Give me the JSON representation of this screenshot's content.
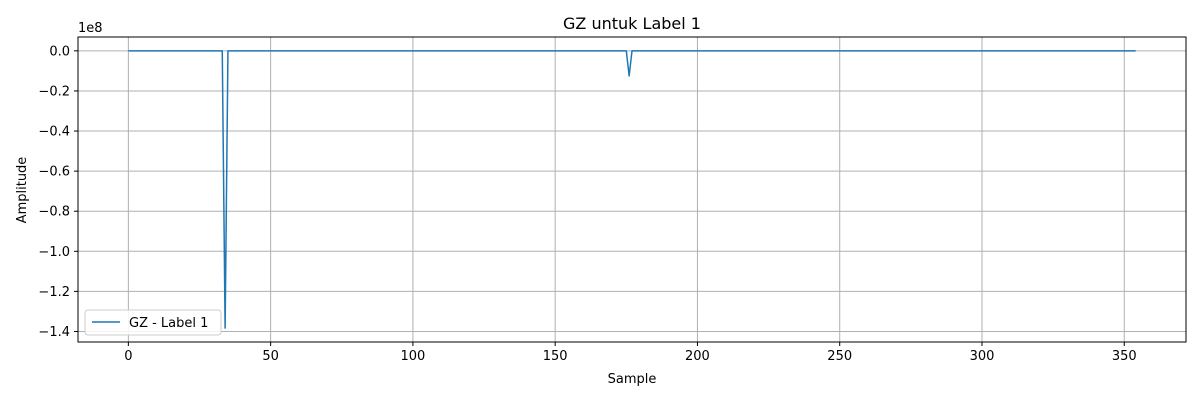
{
  "chart_data": {
    "type": "line",
    "title": "GZ untuk Label 1",
    "xlabel": "Sample",
    "ylabel": "Amplitude",
    "y_offset_label": "1e8",
    "xlim": [
      -17.7,
      371.7
    ],
    "ylim": [
      -1.4525,
      0.0691
    ],
    "xticks": [
      0,
      50,
      100,
      150,
      200,
      250,
      300,
      350
    ],
    "xtick_labels": [
      "0",
      "50",
      "100",
      "150",
      "200",
      "250",
      "300",
      "350"
    ],
    "yticks": [
      0.0,
      -0.2,
      -0.4,
      -0.6,
      -0.8,
      -1.0,
      -1.2,
      -1.4
    ],
    "ytick_labels": [
      "0.0",
      "−0.2",
      "−0.4",
      "−0.6",
      "−0.8",
      "−1.0",
      "−1.2",
      "−1.4"
    ],
    "grid": true,
    "legend_position": "lower-left",
    "series": [
      {
        "name": "GZ - Label 1",
        "color": "#1f77b4",
        "x": [
          0,
          33,
          34,
          35,
          175,
          176,
          177,
          354
        ],
        "y": [
          0.0,
          0.0,
          -1.383,
          0.0,
          0.0,
          -0.125,
          0.0,
          0.0
        ]
      }
    ]
  }
}
